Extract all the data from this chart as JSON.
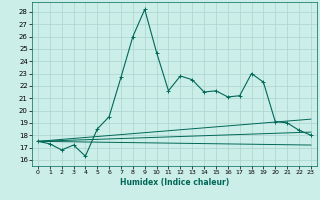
{
  "xlabel": "Humidex (Indice chaleur)",
  "background_color": "#cceee8",
  "grid_color": "#aad4ce",
  "line_color": "#006858",
  "xlim": [
    -0.5,
    23.5
  ],
  "ylim": [
    15.5,
    28.8
  ],
  "yticks": [
    16,
    17,
    18,
    19,
    20,
    21,
    22,
    23,
    24,
    25,
    26,
    27,
    28
  ],
  "xticks": [
    0,
    1,
    2,
    3,
    4,
    5,
    6,
    7,
    8,
    9,
    10,
    11,
    12,
    13,
    14,
    15,
    16,
    17,
    18,
    19,
    20,
    21,
    22,
    23
  ],
  "line1_x": [
    0,
    1,
    2,
    3,
    4,
    5,
    6,
    7,
    8,
    9,
    10,
    11,
    12,
    13,
    14,
    15,
    16,
    17,
    18,
    19,
    20,
    21,
    22,
    23
  ],
  "line1_y": [
    17.5,
    17.3,
    16.8,
    17.2,
    16.3,
    18.5,
    19.5,
    22.7,
    26.0,
    28.2,
    24.7,
    21.6,
    22.8,
    22.5,
    21.5,
    21.6,
    21.1,
    21.2,
    23.0,
    22.3,
    19.1,
    19.0,
    18.4,
    18.0
  ],
  "line2_x": [
    0,
    23
  ],
  "line2_y": [
    17.5,
    17.2
  ],
  "line3_x": [
    0,
    23
  ],
  "line3_y": [
    17.5,
    19.3
  ],
  "line4_x": [
    0,
    23
  ],
  "line4_y": [
    17.5,
    18.25
  ]
}
